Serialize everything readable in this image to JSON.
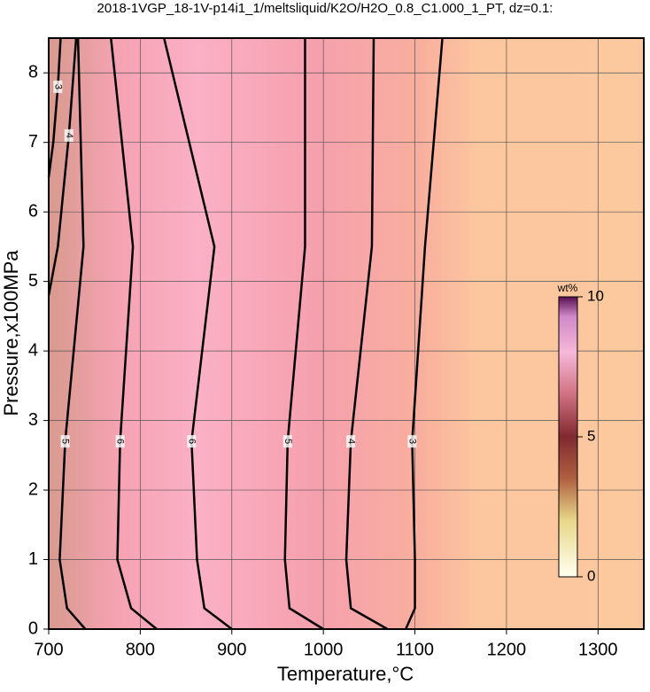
{
  "chart_data": {
    "type": "contour",
    "title": "2018-1VGP_18-1V-p14i1_1/meltsliquid/K2O/H2O_0.8_C1.000_1_PT, dz=0.1:",
    "xlabel": "Temperature,°C",
    "ylabel": "Pressure,x100MPa",
    "xlim": [
      700,
      1350
    ],
    "ylim": [
      0,
      8.5
    ],
    "xticks": [
      700,
      800,
      900,
      1000,
      1100,
      1200,
      1300
    ],
    "yticks": [
      0,
      1,
      2,
      3,
      4,
      5,
      6,
      7,
      8
    ],
    "grid": true,
    "line_color": "#000000",
    "contours": [
      {
        "level": 3,
        "x": [
          700,
          705,
          710,
          713
        ],
        "y": [
          6.5,
          7,
          7.8,
          8.5
        ]
      },
      {
        "level": 4,
        "x": [
          700,
          710,
          722,
          730
        ],
        "y": [
          4.8,
          5.5,
          7.1,
          8.5
        ]
      },
      {
        "level": 5,
        "x": [
          740,
          720,
          712,
          718,
          738,
          732
        ],
        "y": [
          0,
          0.3,
          1,
          2.7,
          5.5,
          8.5
        ]
      },
      {
        "level": 6,
        "x": [
          818,
          790,
          775,
          778,
          792,
          768
        ],
        "y": [
          0,
          0.3,
          1,
          2.7,
          5.5,
          8.5
        ]
      },
      {
        "level": 6,
        "x": [
          900,
          870,
          862,
          856,
          881,
          826
        ],
        "y": [
          0,
          0.3,
          1,
          2.7,
          5.5,
          8.5
        ]
      },
      {
        "level": 5,
        "x": [
          1000,
          963,
          958,
          961,
          980,
          980
        ],
        "y": [
          0,
          0.3,
          1,
          2.7,
          5.5,
          8.5
        ]
      },
      {
        "level": 4,
        "x": [
          1070,
          1030,
          1025,
          1030,
          1053,
          1055
        ],
        "y": [
          0,
          0.3,
          1,
          2.7,
          5.5,
          8.5
        ]
      },
      {
        "level": 3,
        "x": [
          1090,
          1100,
          1100,
          1097,
          1111,
          1130
        ],
        "y": [
          0,
          0.3,
          1,
          2.7,
          5.5,
          8.5
        ]
      }
    ],
    "colorbar": {
      "label": "wt%",
      "lim": [
        0,
        10
      ],
      "ticks": [
        0,
        5,
        10
      ]
    }
  }
}
